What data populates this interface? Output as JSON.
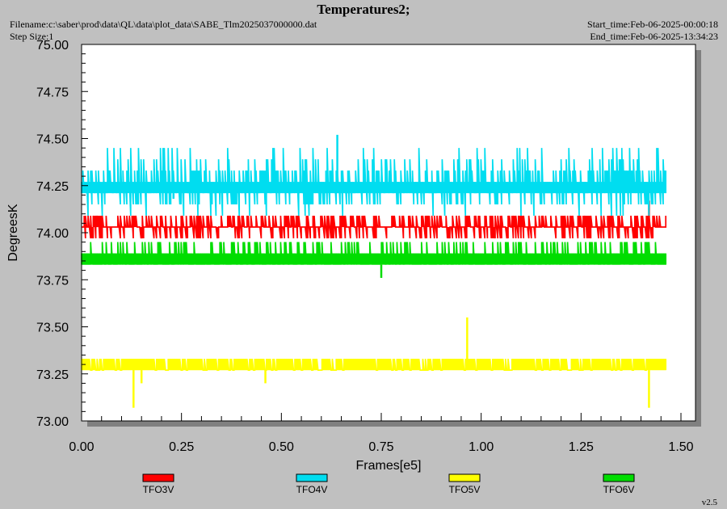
{
  "header": {
    "title": "Temperatures2;",
    "filename": "Filename:c:\\saber\\prod\\data\\QL\\data\\plot_data\\SABE_Tlm2025037000000.dat",
    "step_size": "Step Size:1",
    "start_time": "Start_time:Feb-06-2025-00:00:18",
    "end_time": "End_time:Feb-06-2025-13:34:23"
  },
  "footer": {
    "version": "v2.5"
  },
  "chart_data": {
    "type": "line",
    "title": "Temperatures2;",
    "xlabel": "Frames[e5]",
    "ylabel": "DegreesK",
    "xlim": [
      0.0,
      1.5
    ],
    "ylim": [
      73.0,
      75.0
    ],
    "x_ticks": [
      "0.00",
      "0.25",
      "0.50",
      "0.75",
      "1.00",
      "1.25",
      "1.50"
    ],
    "y_ticks": [
      "73.00",
      "73.25",
      "73.50",
      "73.75",
      "74.00",
      "74.25",
      "74.50",
      "74.75",
      "75.00"
    ],
    "legend_position": "bottom",
    "grid": false,
    "series": [
      {
        "name": "TFO3V",
        "color": "#ff0000",
        "x_range": [
          0.0,
          1.465
        ],
        "levels": [
          73.97,
          74.03,
          74.09
        ],
        "spikes": [
          {
            "x": 1.42,
            "y": 74.17
          }
        ]
      },
      {
        "name": "TFO4V",
        "color": "#00ddf0",
        "x_range": [
          0.0,
          1.465
        ],
        "levels": [
          74.03,
          74.09,
          74.15,
          74.21,
          74.27,
          74.33,
          74.39,
          74.45
        ],
        "spikes": [
          {
            "x": 0.64,
            "y": 74.52
          },
          {
            "x": 0.23,
            "y": 74.18
          }
        ]
      },
      {
        "name": "TFO5V",
        "color": "#ffff00",
        "x_range": [
          0.0,
          1.465
        ],
        "levels": [
          73.27,
          73.33
        ],
        "spikes": [
          {
            "x": 0.13,
            "y": 73.07
          },
          {
            "x": 0.15,
            "y": 73.2
          },
          {
            "x": 0.46,
            "y": 73.2
          },
          {
            "x": 0.965,
            "y": 73.55
          },
          {
            "x": 1.42,
            "y": 73.07
          }
        ]
      },
      {
        "name": "TFO6V",
        "color": "#00dd00",
        "x_range": [
          0.0,
          1.465
        ],
        "levels": [
          73.83,
          73.89,
          73.95
        ],
        "spikes": [
          {
            "x": 0.75,
            "y": 73.76
          }
        ]
      }
    ]
  }
}
